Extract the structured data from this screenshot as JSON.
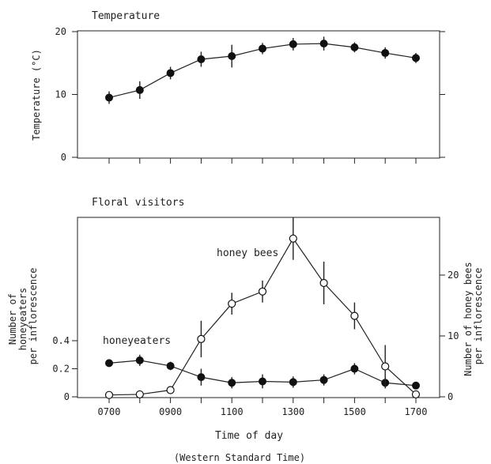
{
  "chart_data": [
    {
      "type": "line",
      "title": "Temperature",
      "ylabel": "Temperature (°C)",
      "xlabel": "",
      "ylim": [
        0,
        20
      ],
      "yticks": [
        "0",
        "10",
        "20"
      ],
      "series": [
        {
          "x": [
            700,
            800,
            900,
            1000,
            1100,
            1200,
            1300,
            1400,
            1500,
            1600,
            1700
          ],
          "values": [
            9.5,
            10.7,
            13.4,
            15.6,
            16.1,
            17.3,
            18.0,
            18.1,
            17.5,
            16.6,
            15.8
          ],
          "errors": [
            1.0,
            1.4,
            1.0,
            1.2,
            1.8,
            0.9,
            1.0,
            1.1,
            0.8,
            0.9,
            0.8
          ],
          "marker": "filled"
        }
      ]
    },
    {
      "type": "line",
      "title": "Floral visitors",
      "xlabel": "Time of day",
      "xlabel_note": "(Western Standard Time)",
      "xticks": [
        "0700",
        "0900",
        "1100",
        "1300",
        "1500",
        "1700"
      ],
      "xlim": [
        700,
        1700
      ],
      "ylabel_left": "Number of honeyeaters per inflorescence",
      "ylim_left": [
        0,
        0.4
      ],
      "yticks_left": [
        "0",
        "0.2",
        "0.4"
      ],
      "ylabel_right": "Number of honey bees per inflorescence",
      "ylim_right": [
        0,
        20
      ],
      "yticks_right": [
        "0",
        "10",
        "20"
      ],
      "series": [
        {
          "name": "honeyeaters",
          "axis": "left",
          "marker": "filled",
          "x": [
            700,
            800,
            900,
            1000,
            1100,
            1200,
            1300,
            1400,
            1500,
            1600,
            1700
          ],
          "values": [
            0.24,
            0.26,
            0.22,
            0.14,
            0.1,
            0.11,
            0.105,
            0.12,
            0.2,
            0.1,
            0.08
          ],
          "errors": [
            0.0,
            0.04,
            0.03,
            0.06,
            0.04,
            0.05,
            0.04,
            0.04,
            0.04,
            0.04,
            0.0
          ]
        },
        {
          "name": "honey bees",
          "axis": "right",
          "marker": "open",
          "x": [
            700,
            800,
            900,
            1000,
            1100,
            1200,
            1300,
            1400,
            1500,
            1600,
            1700
          ],
          "values": [
            0.3,
            0.4,
            1.1,
            9.5,
            15.3,
            17.3,
            26.0,
            18.7,
            13.3,
            5.0,
            0.4
          ],
          "errors": [
            0.0,
            0.0,
            0.0,
            3.0,
            1.8,
            1.8,
            3.5,
            3.5,
            2.2,
            3.5,
            0.0
          ]
        }
      ]
    }
  ]
}
